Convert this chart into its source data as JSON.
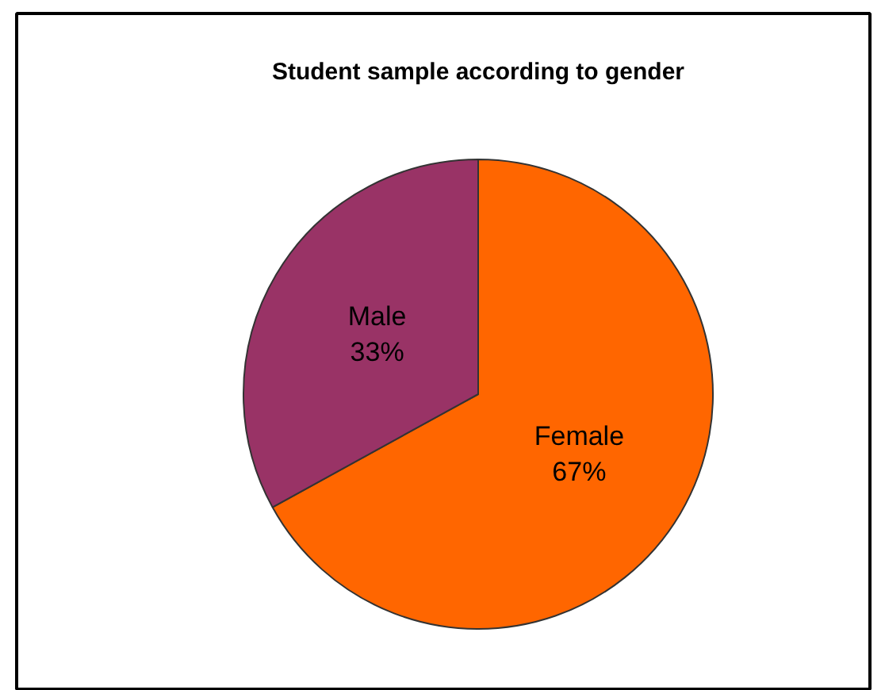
{
  "chart_data": {
    "type": "pie",
    "title": "Student sample according to gender",
    "categories": [
      "Female",
      "Male"
    ],
    "values": [
      67,
      33
    ],
    "colors": [
      "#ff6600",
      "#993366"
    ],
    "value_labels": [
      "67%",
      "33%"
    ]
  }
}
